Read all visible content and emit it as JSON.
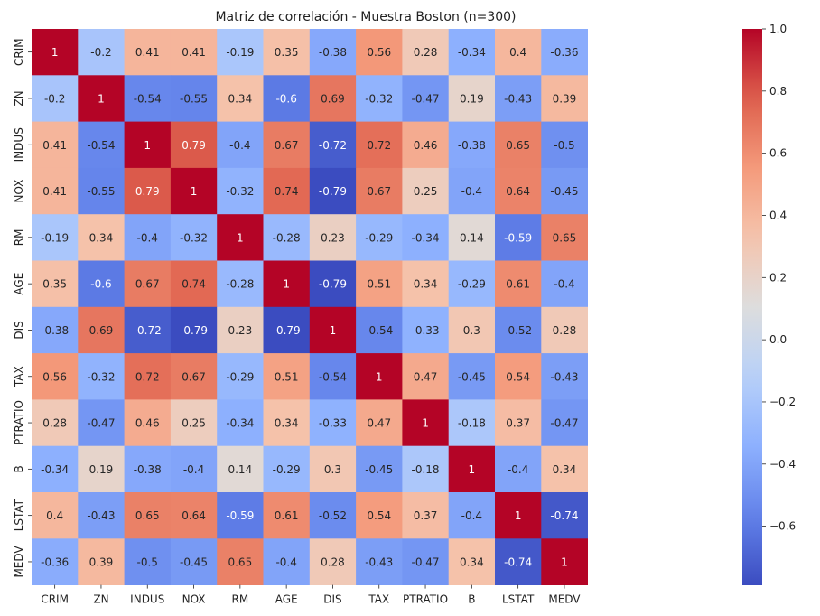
{
  "chart_data": {
    "type": "heatmap",
    "title": "Matriz de correlación - Muestra Boston (n=300)",
    "variables": [
      "CRIM",
      "ZN",
      "INDUS",
      "NOX",
      "RM",
      "AGE",
      "DIS",
      "TAX",
      "PTRATIO",
      "B",
      "LSTAT",
      "MEDV"
    ],
    "matrix": [
      [
        1,
        -0.2,
        0.41,
        0.41,
        -0.19,
        0.35,
        -0.38,
        0.56,
        0.28,
        -0.34,
        0.4,
        -0.36
      ],
      [
        -0.2,
        1,
        -0.54,
        -0.55,
        0.34,
        -0.6,
        0.69,
        -0.32,
        -0.47,
        0.19,
        -0.43,
        0.39
      ],
      [
        0.41,
        -0.54,
        1,
        0.79,
        -0.4,
        0.67,
        -0.72,
        0.72,
        0.46,
        -0.38,
        0.65,
        -0.5
      ],
      [
        0.41,
        -0.55,
        0.79,
        1,
        -0.32,
        0.74,
        -0.79,
        0.67,
        0.25,
        -0.4,
        0.64,
        -0.45
      ],
      [
        -0.19,
        0.34,
        -0.4,
        -0.32,
        1,
        -0.28,
        0.23,
        -0.29,
        -0.34,
        0.14,
        -0.59,
        0.65
      ],
      [
        0.35,
        -0.6,
        0.67,
        0.74,
        -0.28,
        1,
        -0.79,
        0.51,
        0.34,
        -0.29,
        0.61,
        -0.4
      ],
      [
        -0.38,
        0.69,
        -0.72,
        -0.79,
        0.23,
        -0.79,
        1,
        -0.54,
        -0.33,
        0.3,
        -0.52,
        0.28
      ],
      [
        0.56,
        -0.32,
        0.72,
        0.67,
        -0.29,
        0.51,
        -0.54,
        1,
        0.47,
        -0.45,
        0.54,
        -0.43
      ],
      [
        0.28,
        -0.47,
        0.46,
        0.25,
        -0.34,
        0.34,
        -0.33,
        0.47,
        1,
        -0.18,
        0.37,
        -0.47
      ],
      [
        -0.34,
        0.19,
        -0.38,
        -0.4,
        0.14,
        -0.29,
        0.3,
        -0.45,
        -0.18,
        1,
        -0.4,
        0.34
      ],
      [
        0.4,
        -0.43,
        0.65,
        0.64,
        -0.59,
        0.61,
        -0.52,
        0.54,
        0.37,
        -0.4,
        1,
        -0.74
      ],
      [
        -0.36,
        0.39,
        -0.5,
        -0.45,
        0.65,
        -0.4,
        0.28,
        -0.43,
        -0.47,
        0.34,
        -0.74,
        1
      ]
    ],
    "colormap": "coolwarm",
    "vmin": -0.79,
    "vmax": 1.0,
    "colorbar_ticks": [
      "1.0",
      "0.8",
      "0.6",
      "0.4",
      "0.2",
      "0.0",
      "−0.2",
      "−0.4",
      "−0.6"
    ],
    "annotations": true,
    "grid": false,
    "legend": "colorbar-right"
  }
}
